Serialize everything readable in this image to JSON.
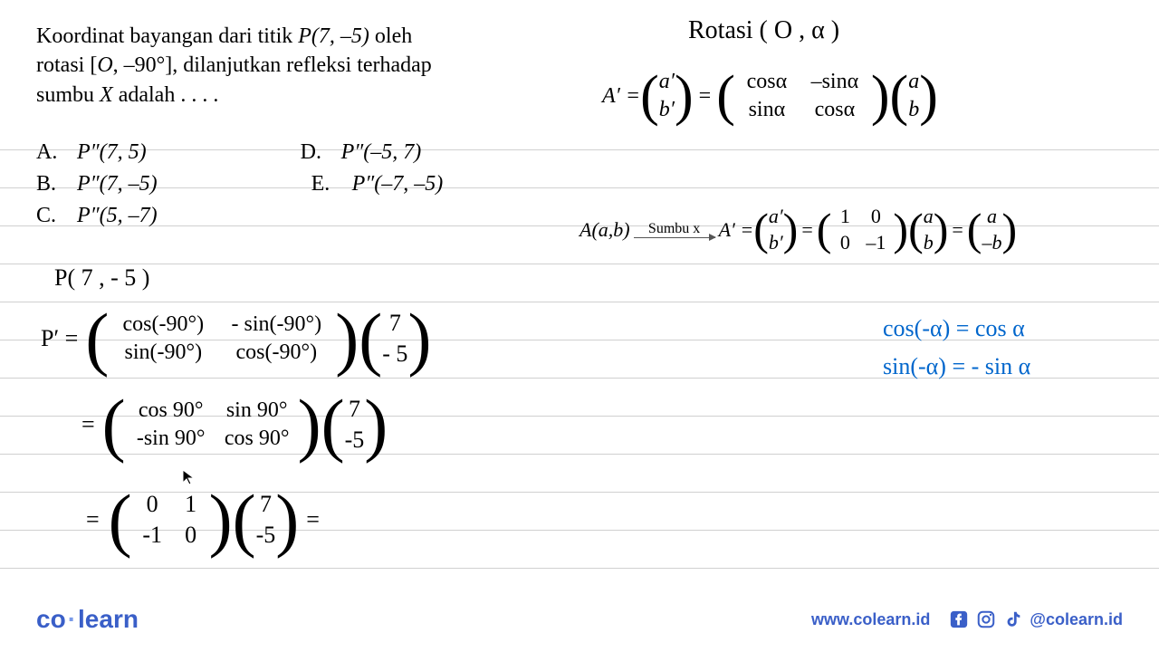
{
  "question": {
    "line1": "Koordinat bayangan dari titik ",
    "point": "P(7, –5)",
    "line1_end": " oleh",
    "line2": "rotasi [",
    "rotasi_o": "O",
    "rotasi_angle": ", –90°], dilanjutkan refleksi terhadap",
    "line3": "sumbu ",
    "axis": "X",
    "line3_end": " adalah . . . ."
  },
  "options": {
    "a": {
      "letter": "A.",
      "value": "P″(7, 5)"
    },
    "b": {
      "letter": "B.",
      "value": "P″(7, –5)"
    },
    "c": {
      "letter": "C.",
      "value": "P″(5, –7)"
    },
    "d": {
      "letter": "D.",
      "value": "P″(–5, 7)"
    },
    "e": {
      "letter": "E.",
      "value": "P″(–7, –5)"
    }
  },
  "rotasi_header": "Rotasi ( O , α )",
  "formula1": {
    "lhs": "A′ =",
    "col1_top": "a′",
    "col1_bot": "b′",
    "eq": "=",
    "m_r1c1": "cosα",
    "m_r1c2": "–sinα",
    "m_r2c1": "sinα",
    "m_r2c2": "cosα",
    "v_top": "a",
    "v_bot": "b"
  },
  "formula2": {
    "lhs": "A(a,b)",
    "arrow_label": "Sumbu x",
    "arrow_rhs": "A′ =",
    "col1_top": "a′",
    "col1_bot": "b′",
    "eq1": "=",
    "m_r1c1": "1",
    "m_r1c2": "0",
    "m_r2c1": "0",
    "m_r2c2": "–1",
    "v_top": "a",
    "v_bot": "b",
    "eq2": "=",
    "r_top": "a",
    "r_bot": "–b"
  },
  "handwork": {
    "p_orig": "P( 7 , - 5 )",
    "p_prime": "P′ =",
    "step1_m11": "cos(-90°)",
    "step1_m12": "- sin(-90°)",
    "step1_m21": "sin(-90°)",
    "step1_m22": "cos(-90°)",
    "step1_v1": "7",
    "step1_v2": "- 5",
    "eq": "=",
    "step2_m11": "cos 90°",
    "step2_m12": "sin 90°",
    "step2_m21": "-sin 90°",
    "step2_m22": "cos 90°",
    "step2_v1": "7",
    "step2_v2": "-5",
    "step3_m11": "0",
    "step3_m12": "1",
    "step3_m21": "-1",
    "step3_m22": "0",
    "step3_v1": "7",
    "step3_v2": "-5",
    "step3_end": "="
  },
  "identities": {
    "cos": "cos(-α) = cos α",
    "sin": "sin(-α) = - sin α"
  },
  "footer": {
    "logo1": "co",
    "logo2": "learn",
    "website": "www.colearn.id",
    "handle": "@colearn.id"
  },
  "ruled_lines_y": [
    165,
    207,
    249,
    291,
    333,
    375,
    417,
    459,
    501,
    543,
    585,
    627
  ]
}
